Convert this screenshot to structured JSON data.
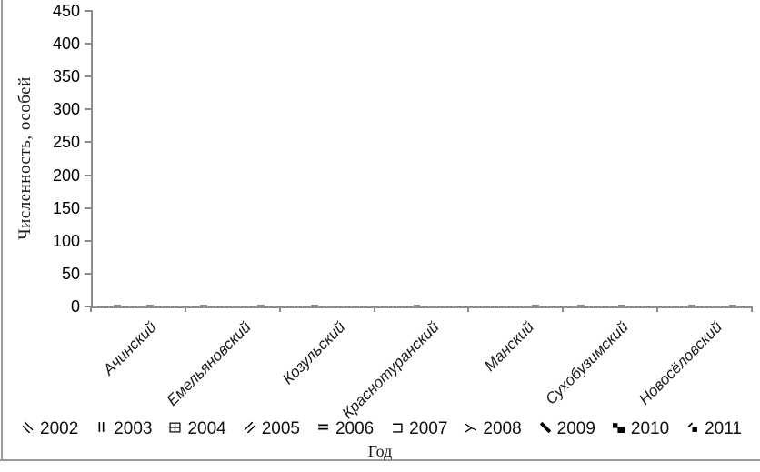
{
  "chart_data": {
    "type": "bar",
    "title": "",
    "xlabel": "Год",
    "ylabel": "Численность, особей",
    "ylim": [
      0,
      450
    ],
    "ytick_interval": 50,
    "yticks": [
      450,
      400,
      350,
      300,
      250,
      200,
      150,
      100,
      50,
      0
    ],
    "grid": false,
    "legend_position": "bottom",
    "axis_color": "#8c8c8c",
    "bar_color": "#8a8a8a",
    "categories": [
      "Ачинский",
      "Емельяновский",
      "Козульский",
      "Краснотуранский",
      "Манский",
      "Сухобузимский",
      "Новосёловский"
    ],
    "series": [
      {
        "name": "2002",
        "pattern": "diagonal-back-stripes-icon",
        "values": [
          2,
          1,
          2,
          1,
          2,
          1,
          2
        ]
      },
      {
        "name": "2003",
        "pattern": "vertical-stripes-icon",
        "values": [
          1,
          3,
          1,
          2,
          1,
          3,
          1
        ]
      },
      {
        "name": "2004",
        "pattern": "grid-hatch-icon",
        "values": [
          3,
          2,
          1,
          1,
          2,
          2,
          1
        ]
      },
      {
        "name": "2005",
        "pattern": "diagonal-stripes-icon",
        "values": [
          1,
          1,
          3,
          2,
          1,
          1,
          3
        ]
      },
      {
        "name": "2006",
        "pattern": "horizontal-stripes-icon",
        "values": [
          2,
          1,
          1,
          3,
          2,
          1,
          1
        ]
      },
      {
        "name": "2007",
        "pattern": "open-square-icon",
        "values": [
          1,
          2,
          2,
          1,
          1,
          2,
          2
        ]
      },
      {
        "name": "2008",
        "pattern": "zigzag-icon",
        "values": [
          3,
          1,
          2,
          2,
          1,
          3,
          1
        ]
      },
      {
        "name": "2009",
        "pattern": "thick-diagonal-icon",
        "values": [
          1,
          2,
          1,
          1,
          3,
          1,
          2
        ]
      },
      {
        "name": "2010",
        "pattern": "solid-squares-icon",
        "values": [
          2,
          3,
          1,
          2,
          1,
          1,
          3
        ]
      },
      {
        "name": "2011",
        "pattern": "diagonal-square-icon",
        "values": [
          1,
          1,
          2,
          1,
          2,
          2,
          1
        ]
      }
    ]
  }
}
